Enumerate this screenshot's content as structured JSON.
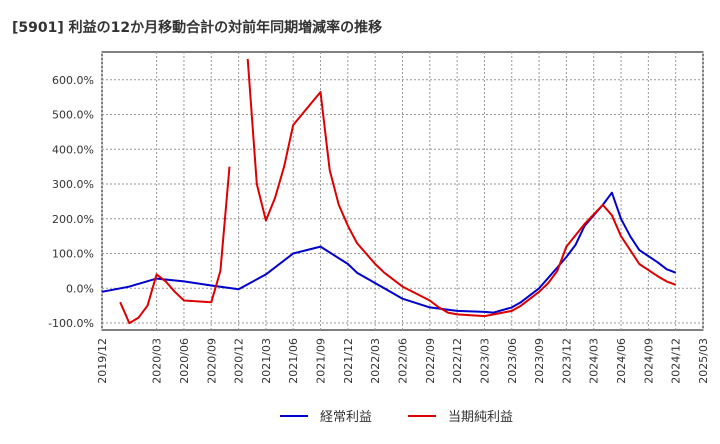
{
  "chart_data": {
    "type": "line",
    "title": "[5901]  利益の12か月移動合計の対前年同期増減率の推移",
    "xlabel": "",
    "ylabel": "",
    "ylim": [
      -120,
      680
    ],
    "yticks": [
      -100,
      0,
      100,
      200,
      300,
      400,
      500,
      600
    ],
    "ytick_labels": [
      "-100.0%",
      "0.0%",
      "100.0%",
      "200.0%",
      "300.0%",
      "400.0%",
      "500.0%",
      "600.0%"
    ],
    "xlim": [
      0,
      66
    ],
    "xticks": [
      0,
      6,
      9,
      12,
      15,
      18,
      21,
      24,
      27,
      30,
      33,
      36,
      39,
      42,
      45,
      48,
      51,
      54,
      57,
      60,
      63,
      66
    ],
    "xtick_labels": [
      "2019/12",
      "2020/03",
      "2020/06",
      "2020/09",
      "2020/12",
      "2021/03",
      "2021/06",
      "2021/09",
      "2021/12",
      "2022/03",
      "2022/06",
      "2022/09",
      "2022/12",
      "2023/03",
      "2023/06",
      "2023/09",
      "2023/12",
      "2024/03",
      "2024/06",
      "2024/09",
      "2024/12",
      "2025/03"
    ],
    "grid": true,
    "legend": "bottom",
    "series": [
      {
        "name": "経常利益",
        "color": "#0000cc",
        "points": [
          [
            0,
            -10
          ],
          [
            3,
            5
          ],
          [
            6,
            28
          ],
          [
            9,
            20
          ],
          [
            12,
            8
          ],
          [
            15,
            -3
          ],
          [
            18,
            40
          ],
          [
            21,
            100
          ],
          [
            24,
            120
          ],
          [
            27,
            70
          ],
          [
            28,
            45
          ],
          [
            30,
            15
          ],
          [
            31,
            0
          ],
          [
            33,
            -30
          ],
          [
            36,
            -55
          ],
          [
            39,
            -65
          ],
          [
            42,
            -68
          ],
          [
            43,
            -70
          ],
          [
            45,
            -55
          ],
          [
            46,
            -40
          ],
          [
            48,
            0
          ],
          [
            50,
            60
          ],
          [
            51,
            90
          ],
          [
            52,
            125
          ],
          [
            53,
            180
          ],
          [
            55,
            240
          ],
          [
            56,
            275
          ],
          [
            57,
            200
          ],
          [
            58,
            150
          ],
          [
            59,
            110
          ],
          [
            61,
            75
          ],
          [
            62,
            55
          ],
          [
            63,
            45
          ]
        ]
      },
      {
        "name": "当期純利益",
        "color": "#dd0000",
        "points": [
          [
            2,
            -40
          ],
          [
            3,
            -100
          ],
          [
            4,
            -85
          ],
          [
            5,
            -50
          ],
          [
            6,
            40
          ],
          [
            7,
            20
          ],
          [
            8,
            -10
          ],
          [
            9,
            -35
          ],
          [
            12,
            -40
          ],
          [
            13,
            50
          ],
          [
            14,
            350
          ],
          [
            null,
            null
          ],
          [
            16,
            660
          ],
          [
            17,
            300
          ],
          [
            18,
            195
          ],
          [
            19,
            260
          ],
          [
            20,
            350
          ],
          [
            21,
            470
          ],
          [
            24,
            565
          ],
          [
            25,
            340
          ],
          [
            26,
            240
          ],
          [
            27,
            180
          ],
          [
            28,
            130
          ],
          [
            30,
            70
          ],
          [
            31,
            45
          ],
          [
            33,
            5
          ],
          [
            36,
            -35
          ],
          [
            37,
            -55
          ],
          [
            38,
            -70
          ],
          [
            39,
            -75
          ],
          [
            42,
            -80
          ],
          [
            45,
            -65
          ],
          [
            46,
            -50
          ],
          [
            48,
            -10
          ],
          [
            49,
            15
          ],
          [
            50,
            50
          ],
          [
            51,
            120
          ],
          [
            53,
            185
          ],
          [
            55,
            240
          ],
          [
            56,
            210
          ],
          [
            57,
            150
          ],
          [
            58,
            110
          ],
          [
            59,
            70
          ],
          [
            61,
            35
          ],
          [
            62,
            20
          ],
          [
            63,
            10
          ]
        ]
      }
    ]
  }
}
